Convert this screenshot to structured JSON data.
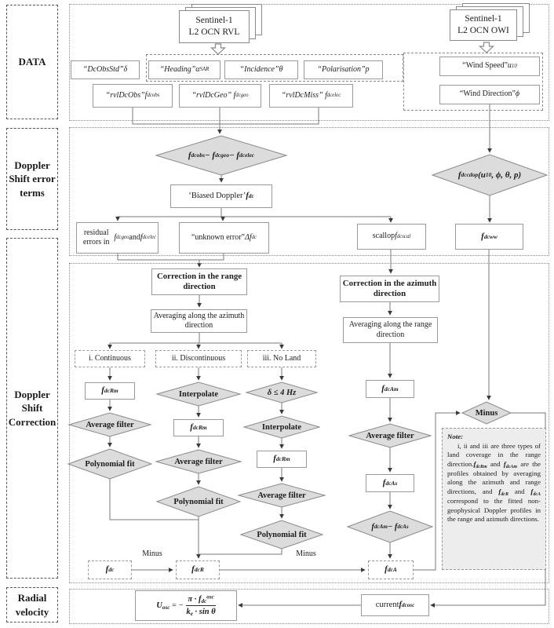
{
  "colors": {
    "diamond_fill": "#dcdcdc",
    "diamond_stroke": "#8a8a8a",
    "box_border": "#9a9a9a",
    "note_fill": "#ededed",
    "wire": "#7a7a7a"
  },
  "sections": {
    "data": {
      "label": "DATA"
    },
    "error_terms": {
      "label": "Doppler Shift error terms"
    },
    "correction": {
      "label": "Doppler Shift Correction"
    },
    "radial": {
      "label": "Radial velocity"
    }
  },
  "nodes": {
    "rvl": {
      "line1": "Sentinel-1",
      "line2": "L2 OCN RVL"
    },
    "owi": {
      "line1": "Sentinel-1",
      "line2": "L2 OCN OWI"
    },
    "dcobsstd": "$“DcObsStd”δ$",
    "heading": "$“Heading”α_{SAR}$",
    "incidence": "$“Incidence”θ$",
    "polarisation": "$“Polarisation”p$",
    "rvldcobs": "$“rvlDcObs”f_{dc}^{obs}$",
    "rvldcgeo": "$“rvlDcGeo” f_{dc}^{geo}$",
    "rvldcmiss": "$“rvlDcMiss” f_{dc}^{elec}$",
    "wind_speed": "“Wind Speed” $u_{10}$",
    "wind_direction": "“Wind Direction” $ϕ$",
    "d1": "$f_{dc}^{obs} − f_{dc}^{geo} − f_{dc}^{elec}$",
    "biased": "‘Biased Doppler’ $f_{dc}$",
    "residual": "residual errors in $f_{dc}^{geo}$ and $f_{dc}^{elec}$",
    "unknown": "“unknown error”$Δf_{dc}$",
    "scallop": "scallop $f_{dc}^{scal}$",
    "fww": "$f_{dc}^{ww}$",
    "cdop": "$f_{dc}^{cdop}(u_{10}, ϕ, θ, p)$",
    "range_header": "Correction in the range direction",
    "azimuth_header": "Correction in the azimuth direction",
    "avg_azimuth": "Averaging along the azimuth direction",
    "avg_range": "Averaging along the range direction",
    "branch_i": "i. Continuous",
    "branch_ii": "ii. Discontinuous",
    "branch_iii": "iii. No Land",
    "fdcrm": "$f_{dcRm}$",
    "interpolate": "Interpolate",
    "avg_filter": "Average filter",
    "poly_fit": "Polynomial fit",
    "delta_cond": "$δ ≤ 4 Hz$",
    "fdc": "$f_{dc}$",
    "fdcr": "$f_{dcR}$",
    "fdca": "$f_{dcA}$",
    "minus_label": "Minus",
    "fdcam": "$f_{dcAm}$",
    "fdcas": "$f_{dcAs}$",
    "sub_diamond": "$f_{dcAm}− f_{dcAs}$",
    "minus_diamond": "Minus",
    "note_title": "Note:",
    "note_body": "i, ii and iii are three types of land coverage in the range direction.$f_{dcRm}$ and $f_{dcAm}$ are the profiles obtained by averaging along the azimuth and range directions, and $f_{dcR}$ and $f_{dcA}$ correspond to the fitted non-geophysical Doppler profiles in the range and azimuth directions.",
    "formula_lhs": "$U_{osc}$ = −",
    "formula_num": "$π · f_{dc}^{osc}$",
    "formula_den": "$k_{e} · sin θ$",
    "current": "current $f_{dc}^{osc}$"
  }
}
